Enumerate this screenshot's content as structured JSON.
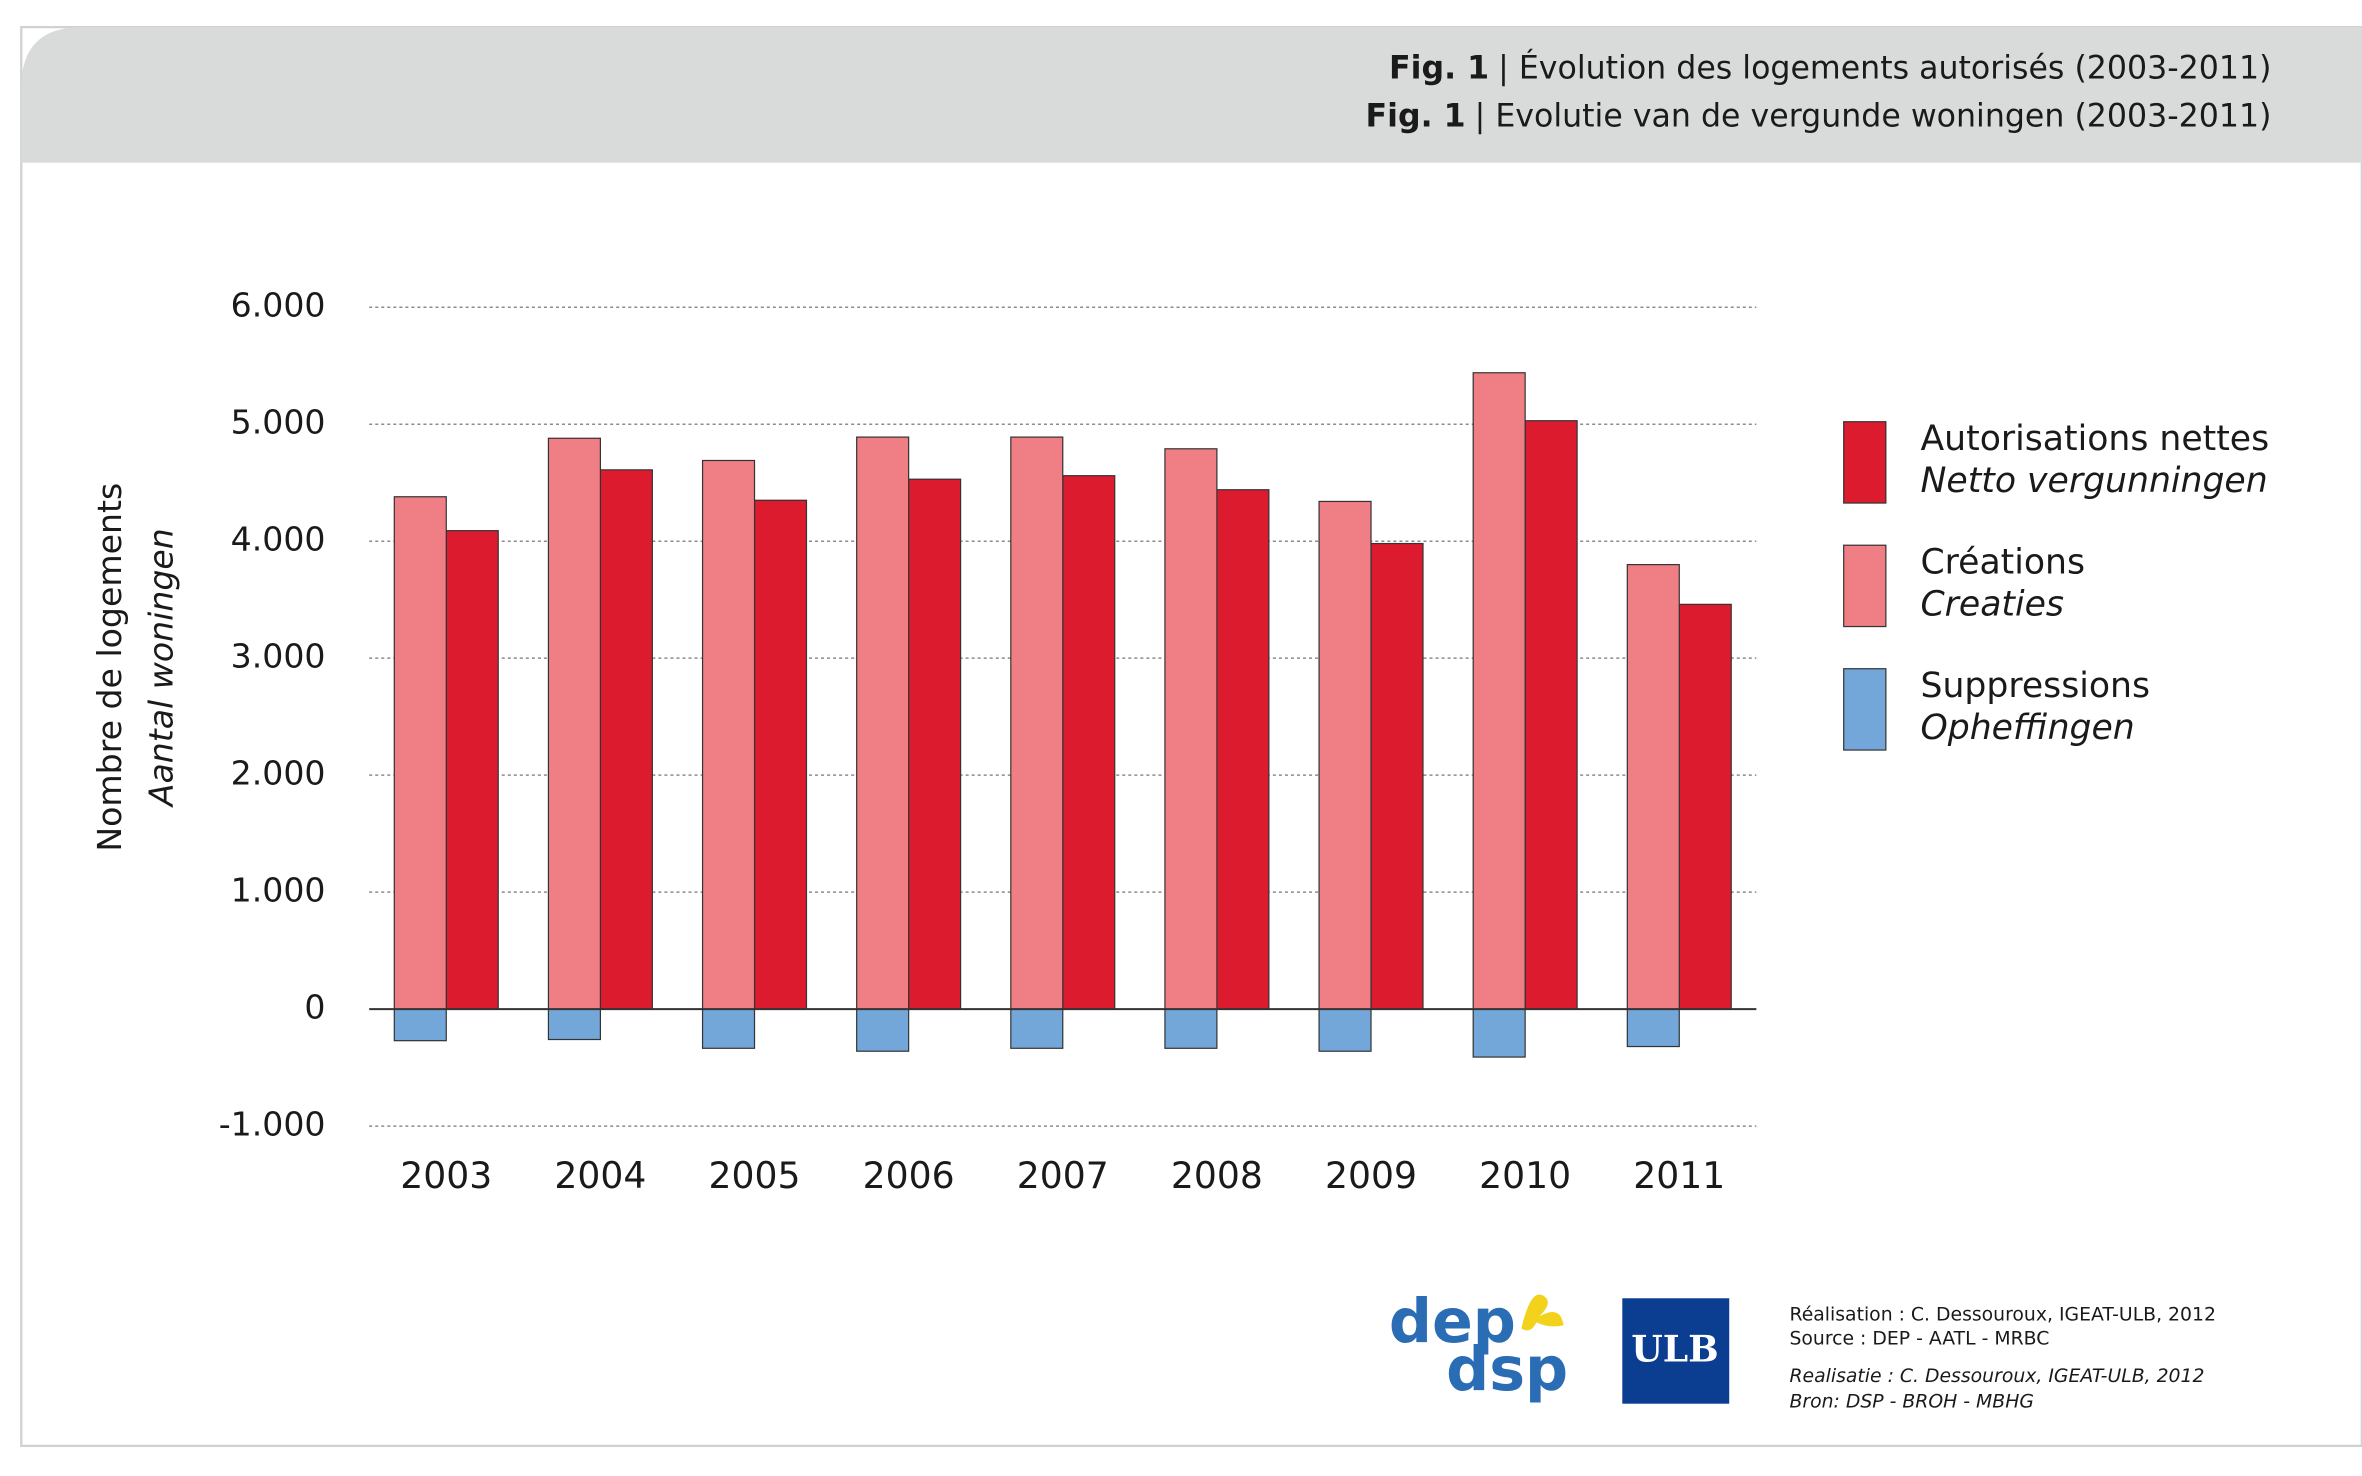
{
  "chart_data": {
    "type": "bar",
    "fig_label": "Fig. 1",
    "title": "| Évolution des logements autorisés (2003-2011)",
    "title_nl": "| Evolutie van de vergunde woningen (2003-2011)",
    "y_label": "Nombre de logements",
    "y_label_nl": "Aantal woningen",
    "categories": [
      "2003",
      "2004",
      "2005",
      "2006",
      "2007",
      "2008",
      "2009",
      "2010",
      "2011"
    ],
    "series": [
      {
        "name": "Autorisations nettes",
        "name_nl": "Netto vergunningen",
        "color": "#dc1c2e",
        "values": [
          4090,
          4610,
          4350,
          4530,
          4560,
          4440,
          3980,
          5030,
          3460
        ]
      },
      {
        "name": "Créations",
        "name_nl": "Creaties",
        "color": "#ef7f85",
        "values": [
          4380,
          4880,
          4690,
          4890,
          4890,
          4790,
          4340,
          5440,
          3800
        ]
      },
      {
        "name": "Suppressions",
        "name_nl": "Opheffingen",
        "color": "#74a7d9",
        "values": [
          -270,
          -260,
          -335,
          -360,
          -335,
          -335,
          -360,
          -410,
          -320
        ]
      }
    ],
    "ylim": [
      -1000,
      6000
    ],
    "yticks": [
      {
        "value": -1000,
        "label": "-1.000"
      },
      0,
      {
        "value": 1000,
        "label": "1.000"
      },
      {
        "value": 2000,
        "label": "2.000"
      },
      {
        "value": 3000,
        "label": "3.000"
      },
      {
        "value": 4000,
        "label": "4.000"
      },
      {
        "value": 5000,
        "label": "5.000"
      },
      {
        "value": 6000,
        "label": "6.000"
      }
    ],
    "grid": true,
    "legend": "right"
  },
  "footer": {
    "credits_fr": [
      "Réalisation : C. Dessouroux, IGEAT-ULB, 2012",
      "Source : DEP - AATL - MRBC"
    ],
    "credits_nl": [
      "Realisatie : C. Dessouroux, IGEAT-ULB, 2012",
      "Bron: DSP - BROH - MBHG"
    ],
    "logo_dep": "dep",
    "logo_dsp": "dsp",
    "logo_ulb": "ULB"
  }
}
